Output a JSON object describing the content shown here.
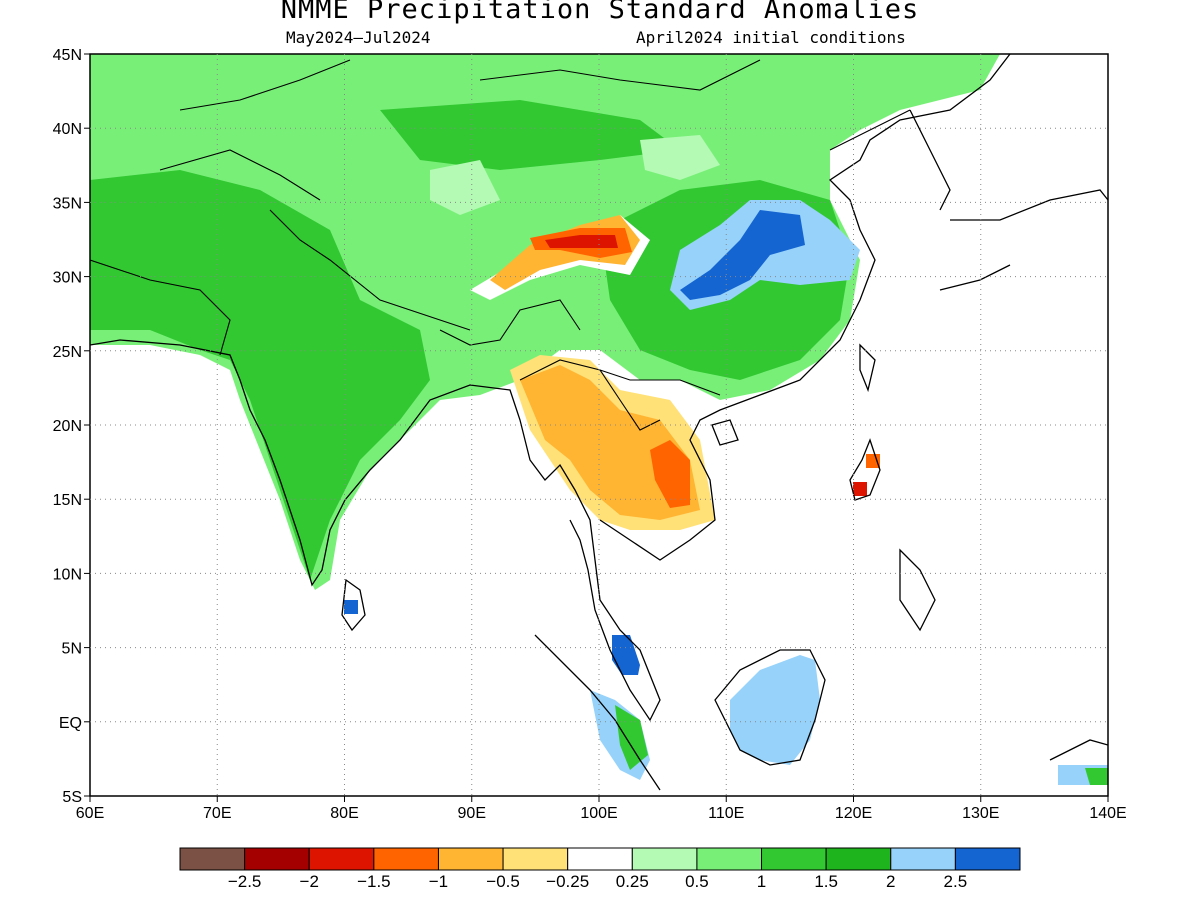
{
  "title": "NMME Precipitation Standard Anomalies",
  "subtitle_left": "May2024–Jul2024",
  "subtitle_right": "April2024 initial conditions",
  "map": {
    "lon_range": [
      60,
      140
    ],
    "lat_range": [
      -5,
      45
    ],
    "x_ticks": [
      "60E",
      "70E",
      "80E",
      "90E",
      "100E",
      "110E",
      "120E",
      "130E",
      "140E"
    ],
    "y_ticks": [
      "45N",
      "40N",
      "35N",
      "30N",
      "25N",
      "20N",
      "15N",
      "10N",
      "5N",
      "EQ",
      "5S"
    ],
    "grid": true
  },
  "colorbar": {
    "colors": [
      "#7b5045",
      "#a50000",
      "#dc1400",
      "#ff6400",
      "#ffb432",
      "#ffe178",
      "#ffffff",
      "#b4fab4",
      "#78f078",
      "#32c832",
      "#1eb41e",
      "#96d2fa",
      "#1464d2"
    ],
    "labels": [
      "−2.5",
      "−2",
      "−1.5",
      "−1",
      "−0.5",
      "−0.25",
      "0.25",
      "0.5",
      "1",
      "1.5",
      "2",
      "2.5"
    ]
  }
}
